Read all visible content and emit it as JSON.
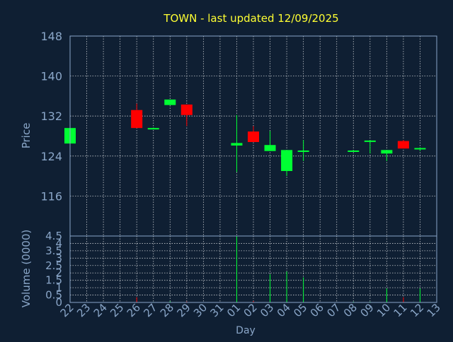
{
  "title": "TOWN - last updated 12/09/2025",
  "colors": {
    "background": "#0f1f33",
    "axis": "#8aa6c8",
    "grid": "#ffffff",
    "title": "#ffff33",
    "up": "#00ff33",
    "down": "#ff0000",
    "tick_label": "#8aa6c8"
  },
  "chart_data": [
    {
      "type": "candlestick",
      "title": "TOWN - last updated 12/09/2025",
      "ylabel": "Price",
      "xlabel": "",
      "ylim": [
        108,
        148
      ],
      "yticks": [
        116,
        124,
        132,
        140,
        148
      ],
      "grid": true,
      "categories": [
        "22",
        "23",
        "24",
        "25",
        "26",
        "27",
        "28",
        "29",
        "30",
        "31",
        "01",
        "02",
        "03",
        "04",
        "05",
        "06",
        "07",
        "08",
        "09",
        "10",
        "11",
        "12",
        "13"
      ],
      "candles": [
        {
          "x": "22",
          "open": 126.5,
          "high": 129.8,
          "low": 126.5,
          "close": 129.6
        },
        {
          "x": "26",
          "open": 133.2,
          "high": 134.5,
          "low": 129.6,
          "close": 129.6
        },
        {
          "x": "27",
          "open": 129.6,
          "high": 129.7,
          "low": 129.4,
          "close": 129.6
        },
        {
          "x": "28",
          "open": 134.2,
          "high": 135.3,
          "low": 134.2,
          "close": 135.3
        },
        {
          "x": "29",
          "open": 134.3,
          "high": 134.3,
          "low": 130.0,
          "close": 132.2
        },
        {
          "x": "01",
          "open": 126.1,
          "high": 132.2,
          "low": 120.8,
          "close": 126.6
        },
        {
          "x": "02",
          "open": 128.9,
          "high": 130.0,
          "low": 126.8,
          "close": 126.8
        },
        {
          "x": "03",
          "open": 125.0,
          "high": 129.0,
          "low": 125.0,
          "close": 126.2
        },
        {
          "x": "04",
          "open": 121.0,
          "high": 125.2,
          "low": 120.0,
          "close": 125.2
        },
        {
          "x": "05",
          "open": 125.1,
          "high": 127.2,
          "low": 123.0,
          "close": 125.1
        },
        {
          "x": "08",
          "open": 125.1,
          "high": 125.2,
          "low": 125.0,
          "close": 125.1
        },
        {
          "x": "09",
          "open": 127.1,
          "high": 127.2,
          "low": 124.5,
          "close": 127.1
        },
        {
          "x": "10",
          "open": 124.5,
          "high": 125.2,
          "low": 123.0,
          "close": 125.2
        },
        {
          "x": "11",
          "open": 127.0,
          "high": 127.2,
          "low": 125.5,
          "close": 125.5
        },
        {
          "x": "12",
          "open": 125.6,
          "high": 125.7,
          "low": 125.0,
          "close": 125.6
        }
      ]
    },
    {
      "type": "bar",
      "title": "",
      "ylabel": "Volume (0000)",
      "xlabel": "Day",
      "ylim": [
        0,
        4.5
      ],
      "yticks": [
        0,
        0.5,
        1,
        1.5,
        2,
        2.5,
        3,
        3.5,
        4,
        4.5
      ],
      "grid": true,
      "categories": [
        "22",
        "23",
        "24",
        "25",
        "26",
        "27",
        "28",
        "29",
        "30",
        "31",
        "01",
        "02",
        "03",
        "04",
        "05",
        "06",
        "07",
        "08",
        "09",
        "10",
        "11",
        "12",
        "13"
      ],
      "bars": [
        {
          "x": "22",
          "value": 0.04,
          "color": "up"
        },
        {
          "x": "26",
          "value": 0.35,
          "color": "down"
        },
        {
          "x": "27",
          "value": 0.03,
          "color": "up"
        },
        {
          "x": "28",
          "value": 0.08,
          "color": "up"
        },
        {
          "x": "29",
          "value": 0.06,
          "color": "down"
        },
        {
          "x": "01",
          "value": 4.5,
          "color": "up"
        },
        {
          "x": "02",
          "value": 0.1,
          "color": "down"
        },
        {
          "x": "03",
          "value": 1.9,
          "color": "up"
        },
        {
          "x": "04",
          "value": 2.1,
          "color": "up"
        },
        {
          "x": "05",
          "value": 1.7,
          "color": "up"
        },
        {
          "x": "08",
          "value": 0.05,
          "color": "up"
        },
        {
          "x": "09",
          "value": 0.05,
          "color": "up"
        },
        {
          "x": "10",
          "value": 0.95,
          "color": "up"
        },
        {
          "x": "11",
          "value": 0.35,
          "color": "down"
        },
        {
          "x": "12",
          "value": 0.95,
          "color": "up"
        }
      ]
    }
  ]
}
